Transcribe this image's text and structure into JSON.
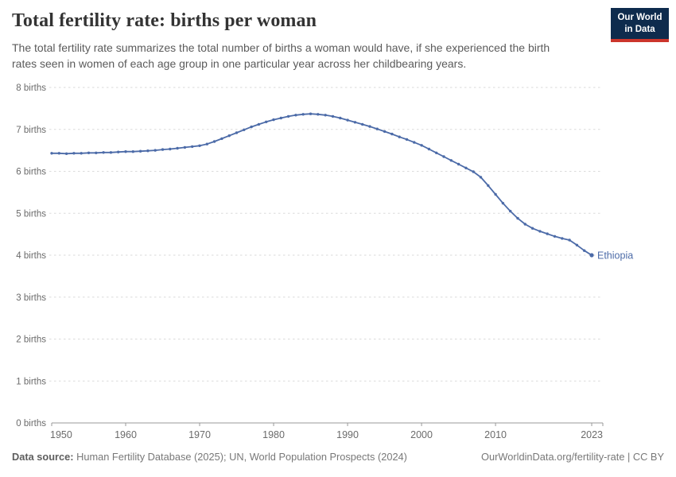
{
  "header": {
    "title": "Total fertility rate: births per woman",
    "subtitle_line1": "The total fertility rate summarizes the total number of births a woman would have, if she experienced the birth",
    "subtitle_line2": "rates seen in women of each age group in one particular year across her childbearing years.",
    "logo_line1": "Our World",
    "logo_line2": "in Data"
  },
  "footer": {
    "source_label": "Data source:",
    "source_text": " Human Fertility Database (2025); UN, World Population Prospects (2024)",
    "link": "OurWorldinData.org/fertility-rate | CC BY"
  },
  "colors": {
    "line": "#4C6BA8",
    "entity_label": "#4C6BA8",
    "gridline": "#dadada",
    "axis_line": "#999999",
    "tick_label": "#6b6b6b",
    "title": "#333333",
    "subtitle": "#5b5b5b",
    "footer": "#787878",
    "logo_navy": "#0e2b4d",
    "logo_red": "#cc352c"
  },
  "chart_data": {
    "type": "line",
    "title": "Total fertility rate: births per woman",
    "entity": "Ethiopia",
    "xlabel": "",
    "ylabel": "births",
    "ylim": [
      0,
      8
    ],
    "xlim": [
      1950,
      2023
    ],
    "grid": "horizontal-dashed",
    "legend_position": "end-of-line-label",
    "y_ticks": [
      0,
      1,
      2,
      3,
      4,
      5,
      6,
      7,
      8
    ],
    "y_tick_suffix": " births",
    "x_ticks": [
      1950,
      1960,
      1970,
      1980,
      1990,
      2000,
      2010,
      2023
    ],
    "x": [
      1950,
      1951,
      1952,
      1953,
      1954,
      1955,
      1956,
      1957,
      1958,
      1959,
      1960,
      1961,
      1962,
      1963,
      1964,
      1965,
      1966,
      1967,
      1968,
      1969,
      1970,
      1971,
      1972,
      1973,
      1974,
      1975,
      1976,
      1977,
      1978,
      1979,
      1980,
      1981,
      1982,
      1983,
      1984,
      1985,
      1986,
      1987,
      1988,
      1989,
      1990,
      1991,
      1992,
      1993,
      1994,
      1995,
      1996,
      1997,
      1998,
      1999,
      2000,
      2001,
      2002,
      2003,
      2004,
      2005,
      2006,
      2007,
      2008,
      2009,
      2010,
      2011,
      2012,
      2013,
      2014,
      2015,
      2016,
      2017,
      2018,
      2019,
      2020,
      2021,
      2022,
      2023
    ],
    "values": [
      6.43,
      6.43,
      6.42,
      6.43,
      6.43,
      6.44,
      6.44,
      6.45,
      6.45,
      6.46,
      6.47,
      6.47,
      6.48,
      6.49,
      6.5,
      6.52,
      6.53,
      6.55,
      6.57,
      6.59,
      6.61,
      6.65,
      6.71,
      6.78,
      6.85,
      6.92,
      6.99,
      7.06,
      7.12,
      7.18,
      7.23,
      7.27,
      7.31,
      7.34,
      7.36,
      7.37,
      7.36,
      7.34,
      7.31,
      7.27,
      7.22,
      7.17,
      7.12,
      7.07,
      7.01,
      6.95,
      6.89,
      6.82,
      6.76,
      6.69,
      6.62,
      6.53,
      6.44,
      6.35,
      6.26,
      6.17,
      6.08,
      5.99,
      5.86,
      5.66,
      5.45,
      5.24,
      5.05,
      4.88,
      4.74,
      4.64,
      4.57,
      4.51,
      4.45,
      4.4,
      4.36,
      4.24,
      4.11,
      4.0
    ]
  }
}
